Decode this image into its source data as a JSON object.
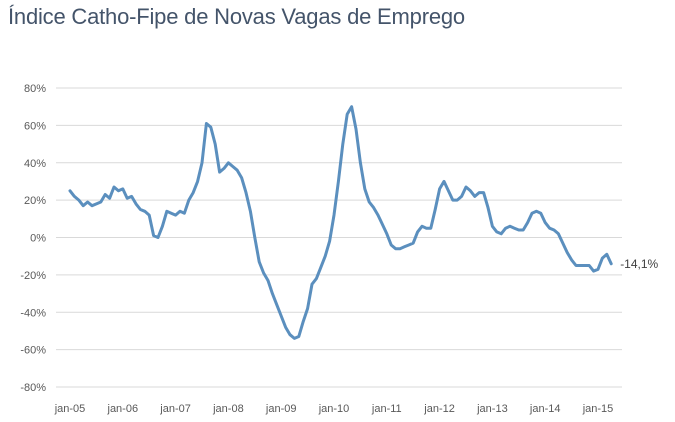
{
  "chart_data": {
    "type": "line",
    "title": "Índice Catho-Fipe de Novas Vagas de Emprego",
    "xlabel": "",
    "ylabel": "",
    "ylim": [
      -80,
      80
    ],
    "y_ticks": [
      80,
      60,
      40,
      20,
      0,
      -20,
      -40,
      -60,
      -80
    ],
    "y_tick_labels": [
      "80%",
      "60%",
      "40%",
      "20%",
      "0%",
      "-20%",
      "-40%",
      "-60%",
      "-80%"
    ],
    "x_tick_labels": [
      "jan-05",
      "jan-06",
      "jan-07",
      "jan-08",
      "jan-09",
      "jan-10",
      "jan-11",
      "jan-12",
      "jan-13",
      "jan-14",
      "jan-15"
    ],
    "x_start": "jan-05",
    "x_unit": "month",
    "grid": true,
    "legend": "none",
    "line_color": "#5b8fbe",
    "annotation": {
      "text": "-14,1%",
      "value": -14.1,
      "position": "end-of-line"
    },
    "series": [
      {
        "name": "Índice Catho-Fipe",
        "values": [
          25,
          22,
          20,
          17,
          19,
          17,
          18,
          19,
          23,
          21,
          27,
          25,
          26,
          21,
          22,
          18,
          15,
          14,
          12,
          1,
          0,
          6,
          14,
          13,
          12,
          14,
          13,
          20,
          24,
          30,
          40,
          61,
          59,
          50,
          35,
          37,
          40,
          38,
          36,
          32,
          24,
          14,
          0,
          -13,
          -19,
          -23,
          -30,
          -36,
          -42,
          -48,
          -52,
          -54,
          -53,
          -45,
          -38,
          -25,
          -22,
          -16,
          -10,
          -2,
          12,
          30,
          50,
          66,
          70,
          58,
          40,
          26,
          19,
          16,
          12,
          7,
          2,
          -4,
          -6,
          -6,
          -5,
          -4,
          -3,
          3,
          6,
          5,
          5,
          15,
          26,
          30,
          25,
          20,
          20,
          22,
          27,
          25,
          22,
          24,
          24,
          16,
          6,
          3,
          2,
          5,
          6,
          5,
          4,
          4,
          8,
          13,
          14,
          13,
          8,
          5,
          4,
          2,
          -3,
          -8,
          -12,
          -15,
          -15,
          -15,
          -15,
          -18,
          -17,
          -11,
          -9,
          -14.1
        ]
      }
    ]
  }
}
